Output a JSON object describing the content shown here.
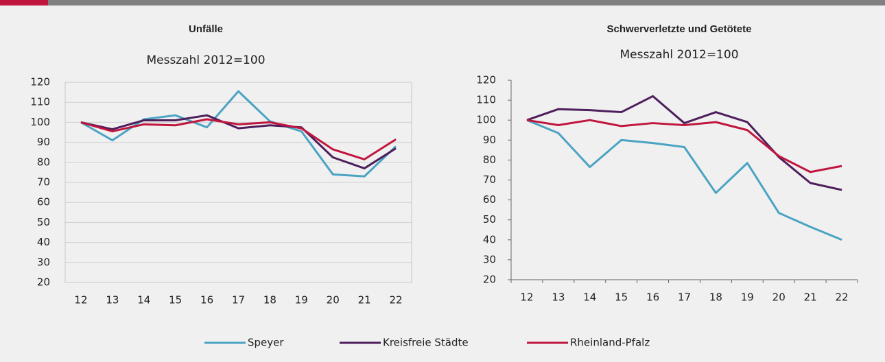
{
  "chart_data": [
    {
      "type": "line",
      "title": "Unfälle",
      "subtitle": "Messzahl 2012=100",
      "categories": [
        "12",
        "13",
        "14",
        "15",
        "16",
        "17",
        "18",
        "19",
        "20",
        "21",
        "22"
      ],
      "ylim": [
        20,
        120
      ],
      "yticks": [
        20,
        30,
        40,
        50,
        60,
        70,
        80,
        90,
        100,
        110,
        120
      ],
      "grid": true,
      "series": [
        {
          "name": "Speyer",
          "color": "#4ba3c3",
          "values": [
            100,
            91,
            101.5,
            103.5,
            97.5,
            115.5,
            100.5,
            95.5,
            74,
            73,
            88
          ]
        },
        {
          "name": "Kreisfreie Städte",
          "color": "#4d1e5b",
          "values": [
            100,
            96.5,
            101,
            101,
            103.5,
            97,
            98.5,
            97.5,
            82.5,
            77,
            87
          ]
        },
        {
          "name": "Rheinland-Pfalz",
          "color": "#c0163e",
          "values": [
            100,
            95.5,
            99,
            98.5,
            101.5,
            99,
            100,
            97,
            86.5,
            81.5,
            91.5
          ]
        }
      ]
    },
    {
      "type": "line",
      "title": "Schwerverletzte und Getötete",
      "subtitle": "Messzahl 2012=100",
      "categories": [
        "12",
        "13",
        "14",
        "15",
        "16",
        "17",
        "18",
        "19",
        "20",
        "21",
        "22"
      ],
      "ylim": [
        20,
        120
      ],
      "yticks": [
        20,
        30,
        40,
        50,
        60,
        70,
        80,
        90,
        100,
        110,
        120
      ],
      "grid": false,
      "series": [
        {
          "color": "#4ba3c3",
          "values": [
            100,
            93.5,
            76.5,
            90,
            88.5,
            86.5,
            63.5,
            78.5,
            53.5,
            46.5,
            40
          ]
        },
        {
          "color": "#4d1e5b",
          "values": [
            100,
            105.5,
            105,
            104,
            112,
            98.5,
            104,
            99,
            81.5,
            68.5,
            65
          ]
        },
        {
          "color": "#c0163e",
          "values": [
            100,
            97.5,
            100,
            97,
            98.5,
            97.5,
            99,
            95,
            82,
            74,
            77
          ]
        }
      ]
    }
  ]
}
